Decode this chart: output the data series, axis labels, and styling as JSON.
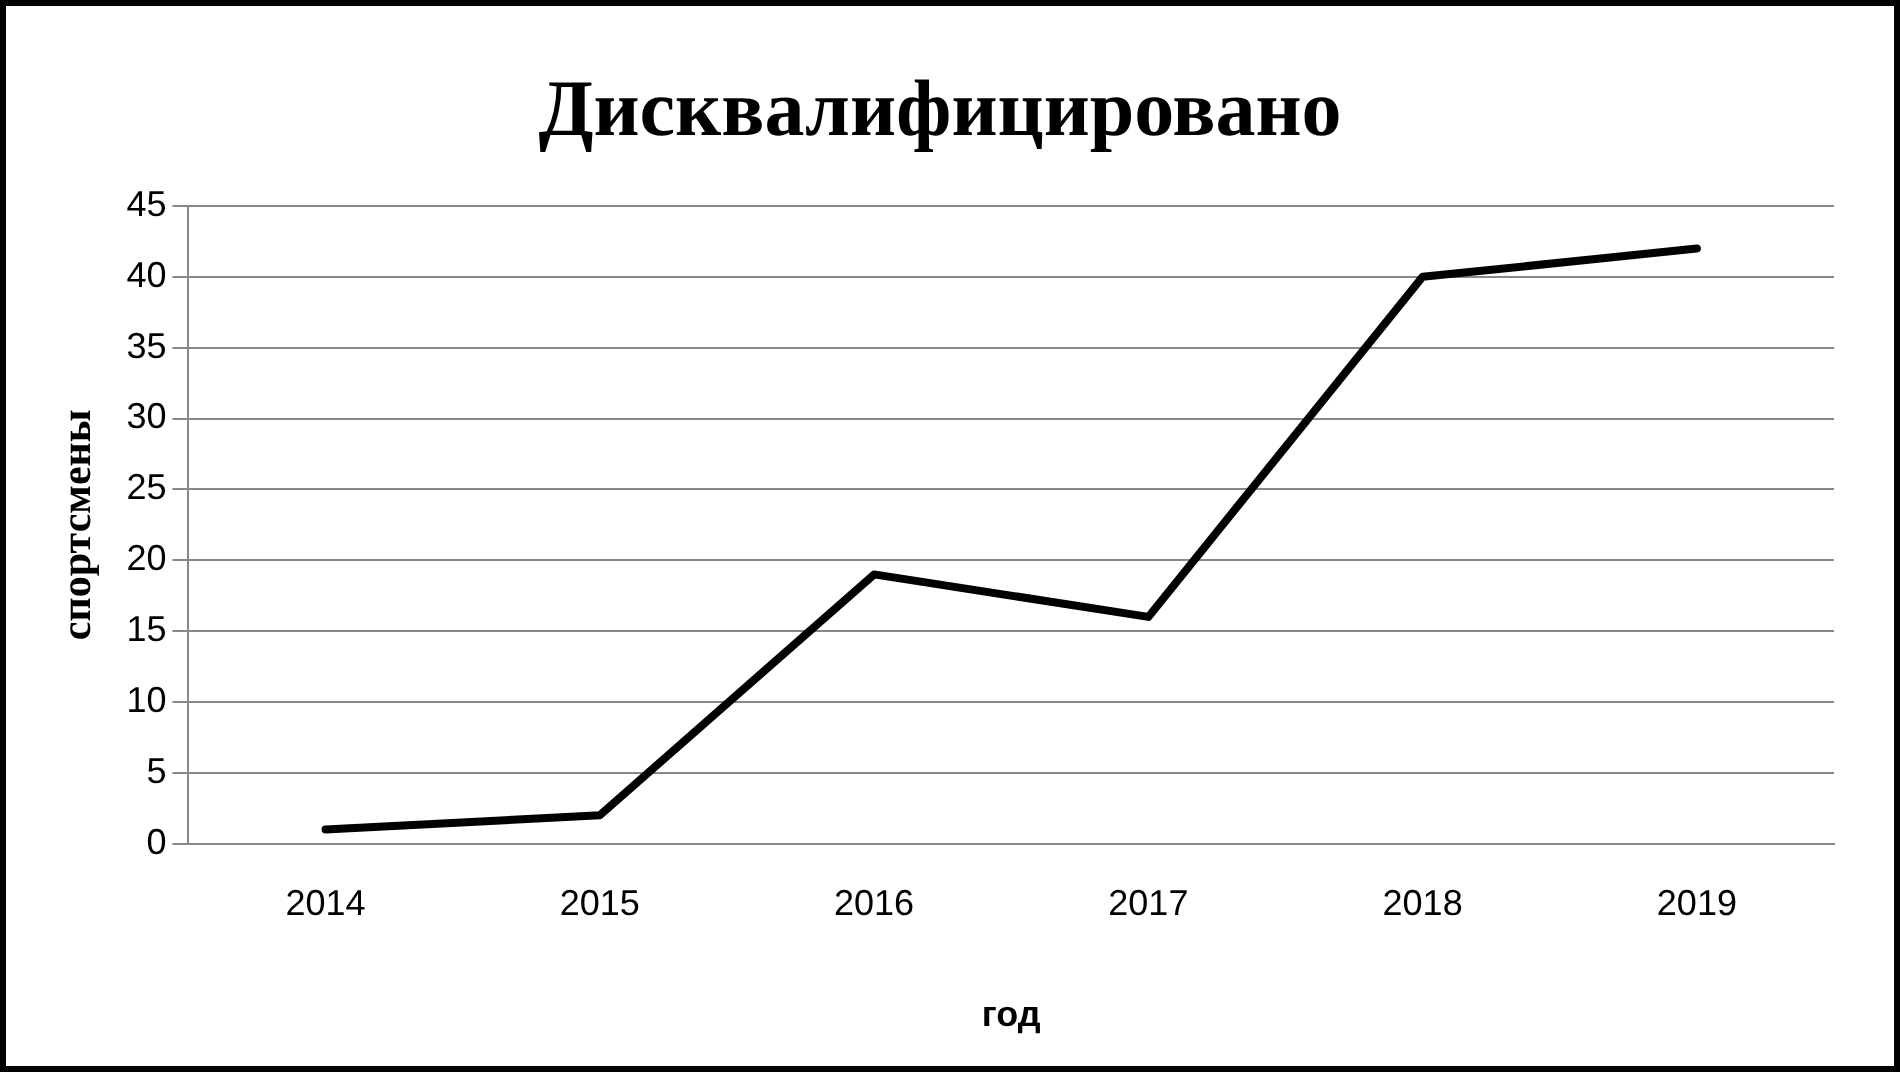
{
  "chart_data": {
    "type": "line",
    "title": "Дисквалифицировано",
    "xlabel": "год",
    "ylabel": "спортсмены",
    "categories": [
      "2014",
      "2015",
      "2016",
      "2017",
      "2018",
      "2019"
    ],
    "series": [
      {
        "color": "#000000",
        "values": [
          1,
          2,
          19,
          16,
          40,
          42
        ]
      }
    ],
    "ylim": [
      0,
      45
    ],
    "yticks": [
      0,
      5,
      10,
      15,
      20,
      25,
      30,
      35,
      40,
      45
    ],
    "grid": "y",
    "legend": false,
    "marker": "none",
    "line_style": "solid"
  }
}
